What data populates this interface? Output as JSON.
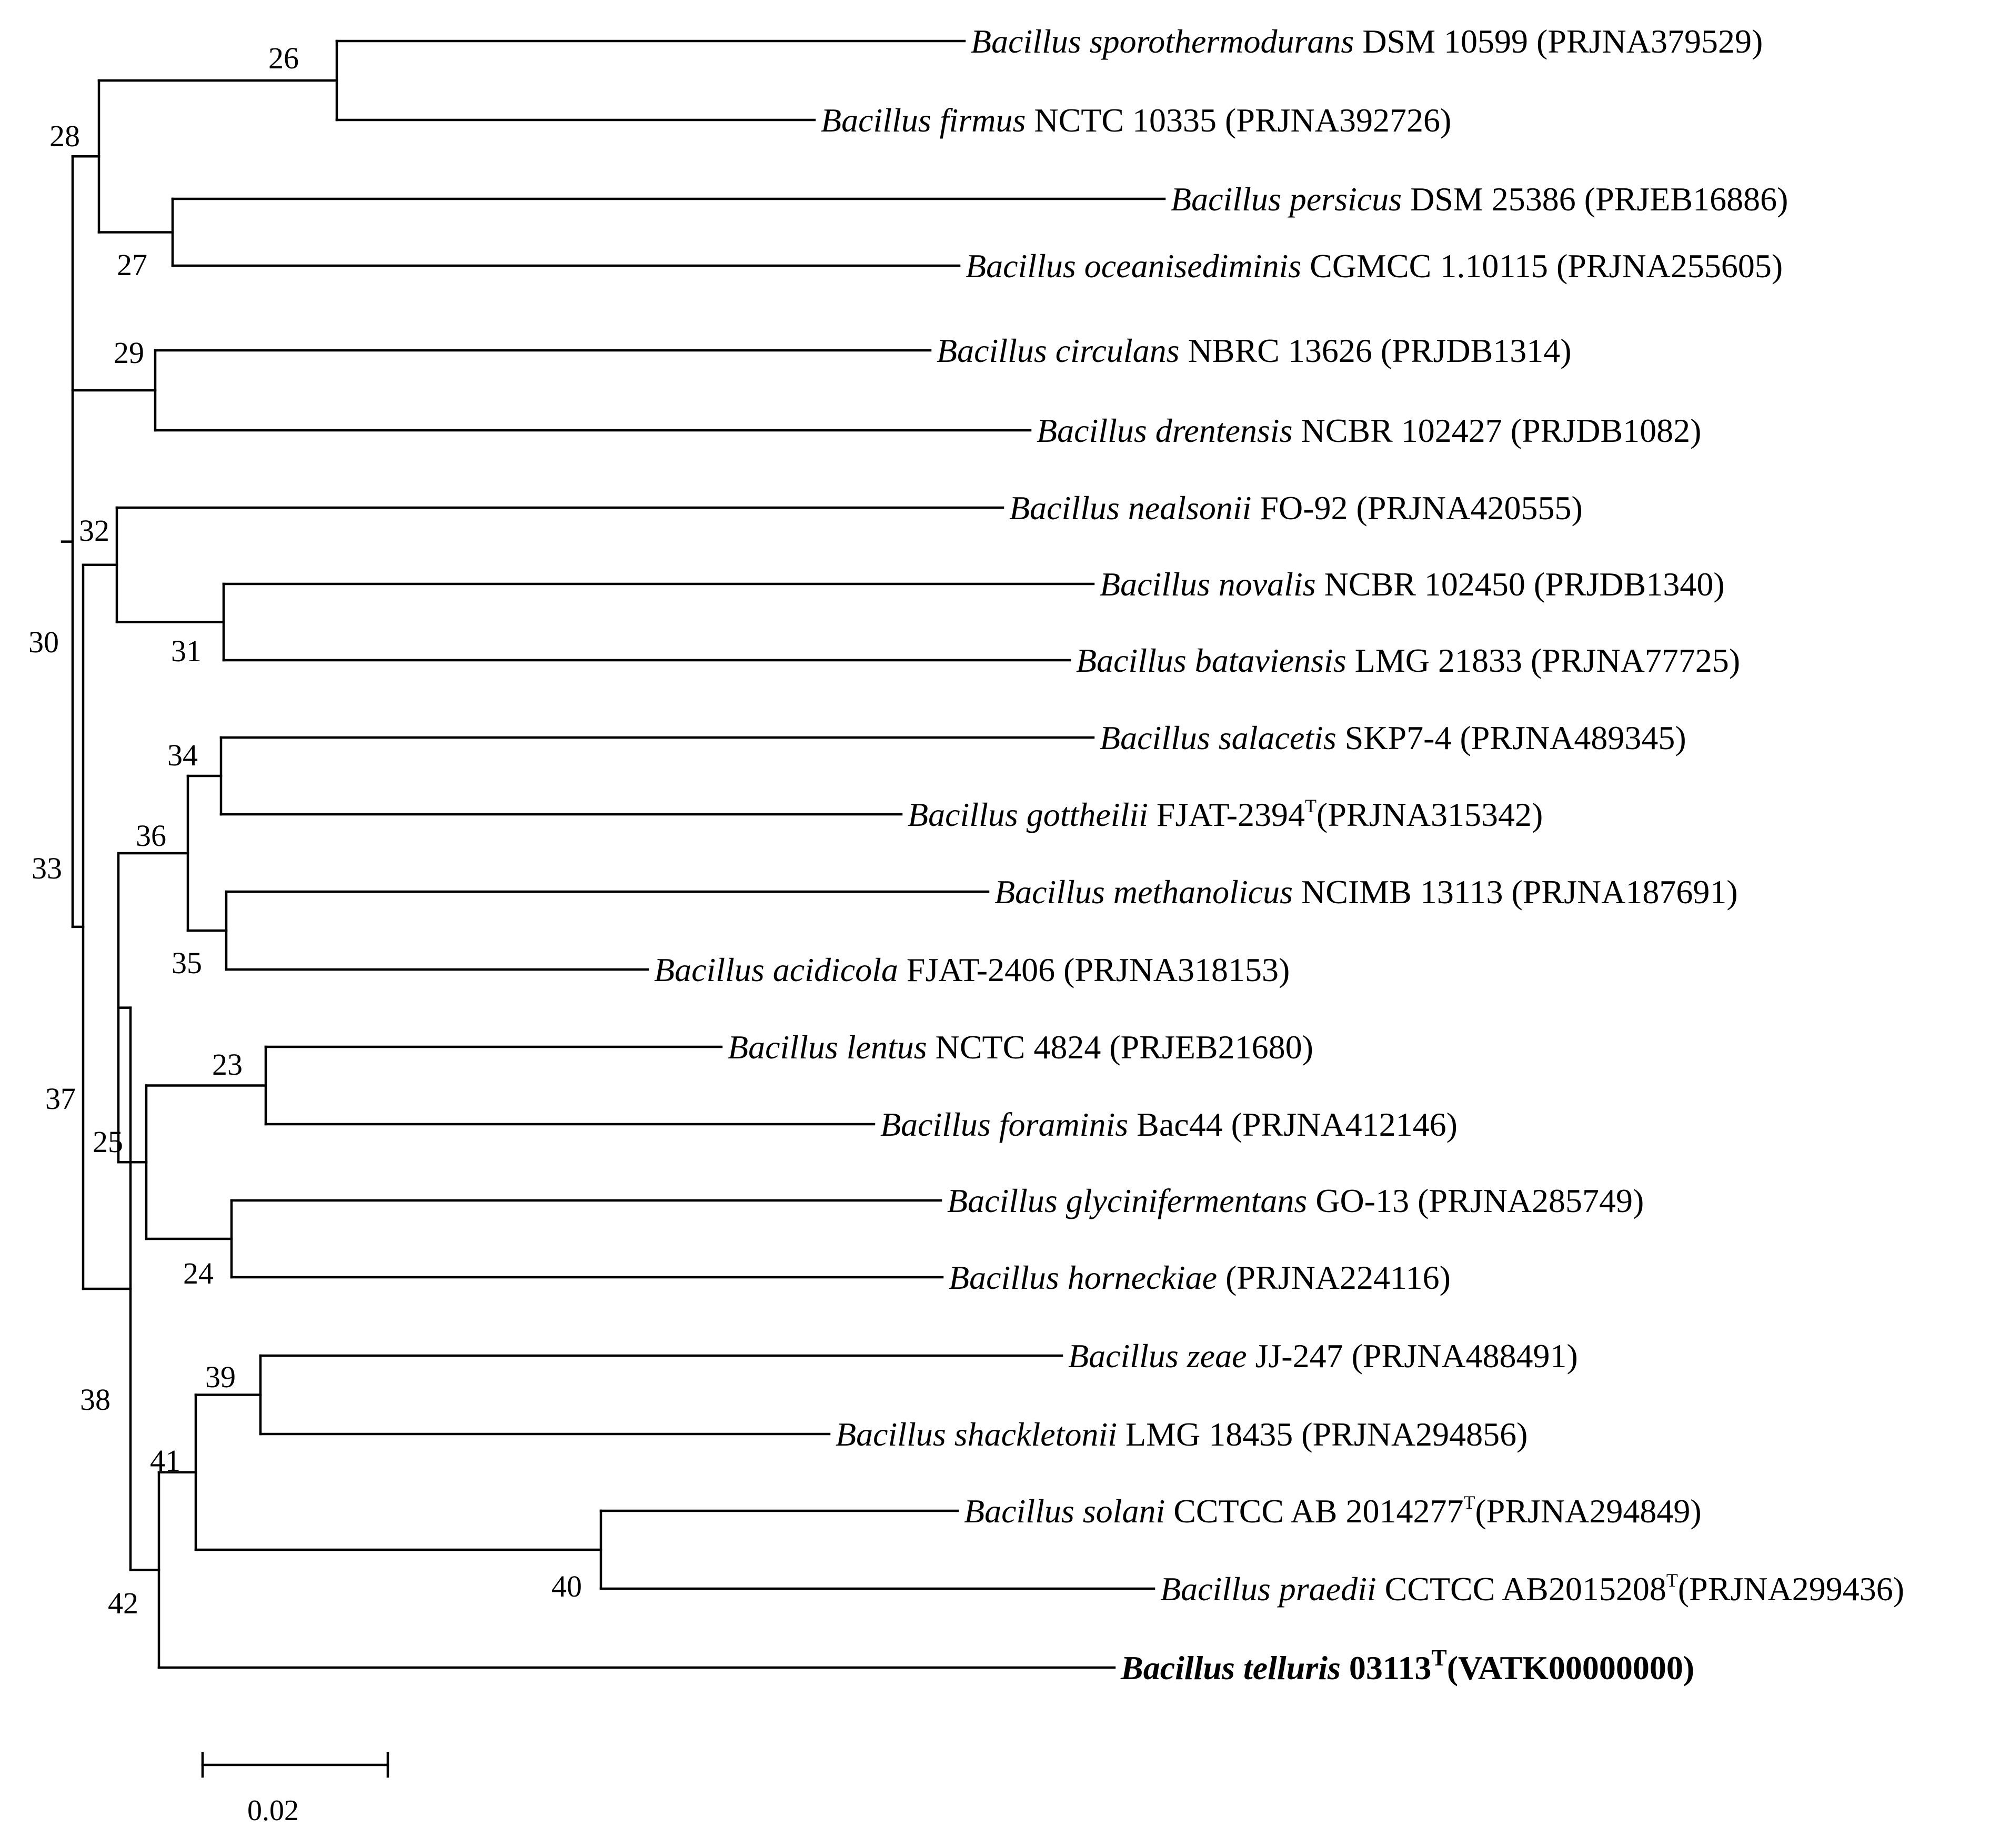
{
  "figure": {
    "type": "phylogenetic-tree",
    "branch_color": "#000000",
    "highlight_taxon": "Bacillus telluris"
  },
  "leaves": [
    {
      "id": "bsporo",
      "genus": "Bacillus",
      "species": "sporothermodurans",
      "strain": "DSM 10599",
      "type_strain": false,
      "accession": "(PRJNA379529)",
      "bold": false
    },
    {
      "id": "bfirmus",
      "genus": "Bacillus",
      "species": "firmus",
      "strain": "NCTC 10335",
      "type_strain": false,
      "accession": "(PRJNA392726)",
      "bold": false
    },
    {
      "id": "bpersicus",
      "genus": "Bacillus",
      "species": "persicus",
      "strain": "DSM 25386",
      "type_strain": false,
      "accession": "(PRJEB16886)",
      "bold": false
    },
    {
      "id": "boceani",
      "genus": "Bacillus",
      "species": "oceanisediminis",
      "strain": "CGMCC 1.10115",
      "type_strain": false,
      "accession": "(PRJNA255605)",
      "bold": false
    },
    {
      "id": "bcirculans",
      "genus": "Bacillus",
      "species": "circulans",
      "strain": "NBRC 13626",
      "type_strain": false,
      "accession": "(PRJDB1314)",
      "bold": false
    },
    {
      "id": "bdrentensis",
      "genus": "Bacillus",
      "species": "drentensis",
      "strain": "NCBR 102427",
      "type_strain": false,
      "accession": "(PRJDB1082)",
      "bold": false
    },
    {
      "id": "bnealsonii",
      "genus": "Bacillus",
      "species": "nealsonii",
      "strain": "FO-92",
      "type_strain": false,
      "accession": "(PRJNA420555)",
      "bold": false
    },
    {
      "id": "bnovalis",
      "genus": "Bacillus",
      "species": "novalis",
      "strain": "NCBR 102450",
      "type_strain": false,
      "accession": "(PRJDB1340)",
      "bold": false
    },
    {
      "id": "bbatav",
      "genus": "Bacillus",
      "species": "bataviensis",
      "strain": "LMG 21833",
      "type_strain": false,
      "accession": "(PRJNA77725)",
      "bold": false
    },
    {
      "id": "bsalacetis",
      "genus": "Bacillus",
      "species": "salacetis",
      "strain": "SKP7-4",
      "type_strain": false,
      "accession": "(PRJNA489345)",
      "bold": false
    },
    {
      "id": "bgottheilii",
      "genus": "Bacillus",
      "species": "gottheilii",
      "strain": "FJAT-2394",
      "type_strain": true,
      "accession": "(PRJNA315342)",
      "bold": false
    },
    {
      "id": "bmethanol",
      "genus": "Bacillus",
      "species": "methanolicus",
      "strain": "NCIMB 13113",
      "type_strain": false,
      "accession": "(PRJNA187691)",
      "bold": false
    },
    {
      "id": "bacidicola",
      "genus": "Bacillus",
      "species": "acidicola",
      "strain": "FJAT-2406",
      "type_strain": false,
      "accession": "(PRJNA318153)",
      "bold": false
    },
    {
      "id": "blentus",
      "genus": "Bacillus",
      "species": "lentus",
      "strain": "NCTC 4824",
      "type_strain": false,
      "accession": "(PRJEB21680)",
      "bold": false
    },
    {
      "id": "bforaminis",
      "genus": "Bacillus",
      "species": "foraminis",
      "strain": "Bac44",
      "type_strain": false,
      "accession": "(PRJNA412146)",
      "bold": false
    },
    {
      "id": "bglycini",
      "genus": "Bacillus",
      "species": "glycinifermentans",
      "strain": "GO-13",
      "type_strain": false,
      "accession": "(PRJNA285749)",
      "bold": false
    },
    {
      "id": "bhorneckiae",
      "genus": "Bacillus",
      "species": "horneckiae",
      "strain": "",
      "type_strain": false,
      "accession": "(PRJNA224116)",
      "bold": false
    },
    {
      "id": "bzeae",
      "genus": "Bacillus",
      "species": "zeae",
      "strain": "JJ-247",
      "type_strain": false,
      "accession": "(PRJNA488491)",
      "bold": false
    },
    {
      "id": "bshackle",
      "genus": "Bacillus",
      "species": "shackletonii",
      "strain": "LMG 18435",
      "type_strain": false,
      "accession": "(PRJNA294856)",
      "bold": false
    },
    {
      "id": "bsolani",
      "genus": "Bacillus",
      "species": "solani",
      "strain": "CCTCC AB 2014277",
      "type_strain": true,
      "accession": "(PRJNA294849)",
      "bold": false
    },
    {
      "id": "bpraedii",
      "genus": "Bacillus",
      "species": "praedii",
      "strain": "CCTCC AB2015208",
      "type_strain": true,
      "accession": "(PRJNA299436)",
      "bold": false
    },
    {
      "id": "btelluris",
      "genus": "Bacillus",
      "species": "telluris",
      "strain": "03113",
      "type_strain": true,
      "accession": "(VATK00000000)",
      "bold": true
    }
  ],
  "type_strain_marker": "T",
  "node_labels": [
    "26",
    "28",
    "27",
    "29",
    "30",
    "32",
    "31",
    "34",
    "36",
    "33",
    "35",
    "23",
    "37",
    "25",
    "24",
    "39",
    "38",
    "41",
    "40",
    "42"
  ],
  "scale_bar": {
    "label": "0.02",
    "value": 0.02
  }
}
